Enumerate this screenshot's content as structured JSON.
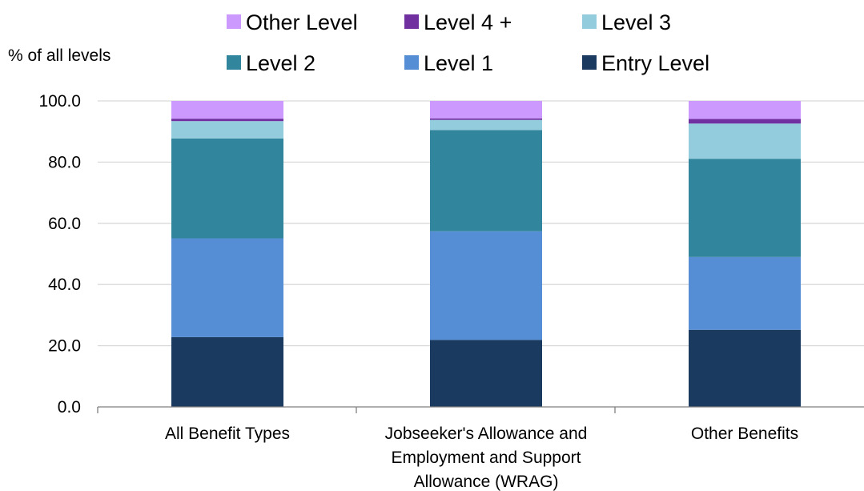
{
  "chart_data": {
    "type": "bar",
    "stacked": true,
    "ylabel": "% of all levels",
    "ylim": [
      0,
      100
    ],
    "yticks": [
      "0.0",
      "20.0",
      "40.0",
      "60.0",
      "80.0",
      "100.0"
    ],
    "grid": true,
    "legend_position": "top",
    "categories": [
      [
        "All Benefit Types"
      ],
      [
        "Jobseeker's Allowance and",
        "Employment and Support",
        "Allowance (WRAG)"
      ],
      [
        "Other Benefits"
      ]
    ],
    "series": [
      {
        "name": "Entry Level",
        "color": "#1a3a60",
        "values": [
          22.8,
          21.9,
          25.2
        ]
      },
      {
        "name": "Level 1",
        "color": "#558ed5",
        "values": [
          32.3,
          35.5,
          23.8
        ]
      },
      {
        "name": "Level 2",
        "color": "#31859c",
        "values": [
          32.6,
          33.1,
          32.1
        ]
      },
      {
        "name": "Level 3",
        "color": "#93cddd",
        "values": [
          5.7,
          3.3,
          11.5
        ]
      },
      {
        "name": "Level 4 +",
        "color": "#7030a0",
        "values": [
          0.8,
          0.5,
          1.5
        ]
      },
      {
        "name": "Other Level",
        "color": "#cc99ff",
        "values": [
          5.8,
          5.7,
          5.9
        ]
      }
    ],
    "legend_order": [
      "Other Level",
      "Level 4 +",
      "Level 3",
      "Level 2",
      "Level 1",
      "Entry Level"
    ]
  }
}
